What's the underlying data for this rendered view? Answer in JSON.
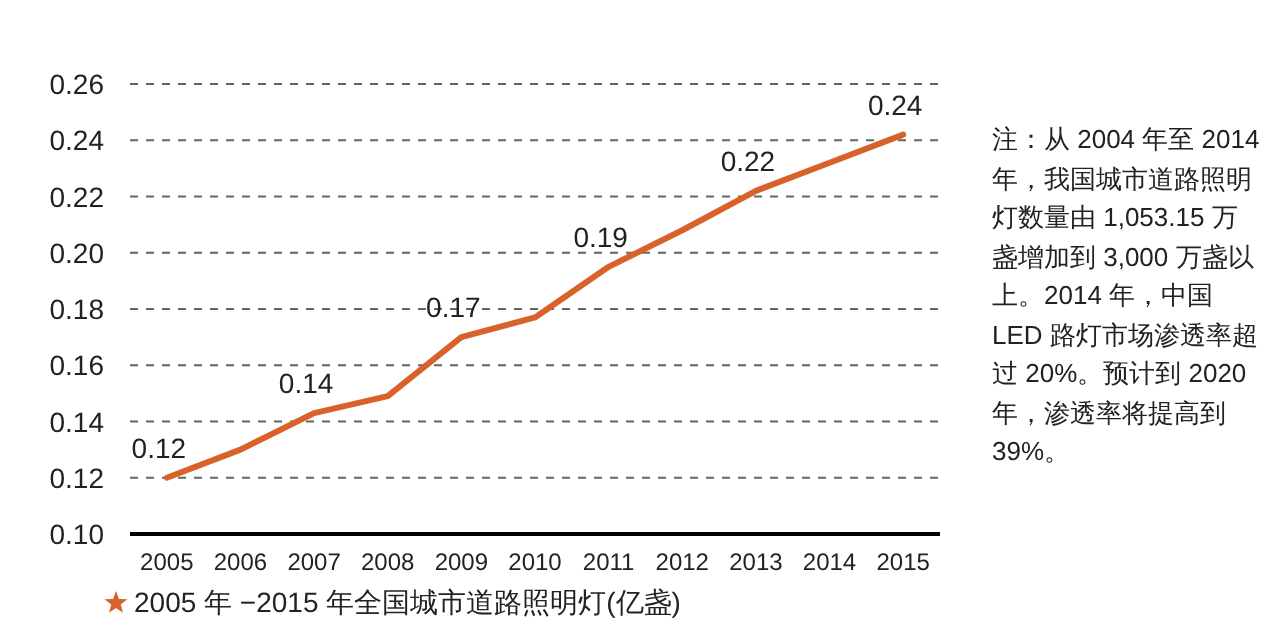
{
  "chart_data": {
    "type": "line",
    "categories": [
      "2005",
      "2006",
      "2007",
      "2008",
      "2009",
      "2010",
      "2011",
      "2012",
      "2013",
      "2014",
      "2015"
    ],
    "series": [
      {
        "name": "2005 年 −2015 年全国城市道路照明灯(亿盏)",
        "color": "#d9622b",
        "values": [
          0.12,
          0.13,
          0.143,
          0.149,
          0.17,
          0.177,
          0.195,
          0.208,
          0.222,
          0.232,
          0.242
        ],
        "value_labels": [
          "0.12",
          null,
          "0.14",
          null,
          "0.17",
          null,
          "0.19",
          null,
          "0.22",
          null,
          "0.24"
        ]
      }
    ],
    "ylim": [
      0.1,
      0.26
    ],
    "yticks": [
      {
        "value": 0.1,
        "label": "0.10"
      },
      {
        "value": 0.12,
        "label": "0.12"
      },
      {
        "value": 0.14,
        "label": "0.14"
      },
      {
        "value": 0.16,
        "label": "0.16"
      },
      {
        "value": 0.18,
        "label": "0.18"
      },
      {
        "value": 0.2,
        "label": "0.20"
      },
      {
        "value": 0.22,
        "label": "0.22"
      },
      {
        "value": 0.24,
        "label": "0.24"
      },
      {
        "value": 0.26,
        "label": "0.26"
      }
    ],
    "grid": "y",
    "legend": "bottom left",
    "marker": "none",
    "line_style": "solid",
    "annotations": [
      "注：从 2004 年至 2014 年，我国城市道路照明灯数量由 1,053.15 万盏增加到 3,000 万盏以上。2014 年，中国 LED 路灯市场渗透率超过 20%。预计到 2020 年，渗透率将提高到 39%。"
    ]
  }
}
